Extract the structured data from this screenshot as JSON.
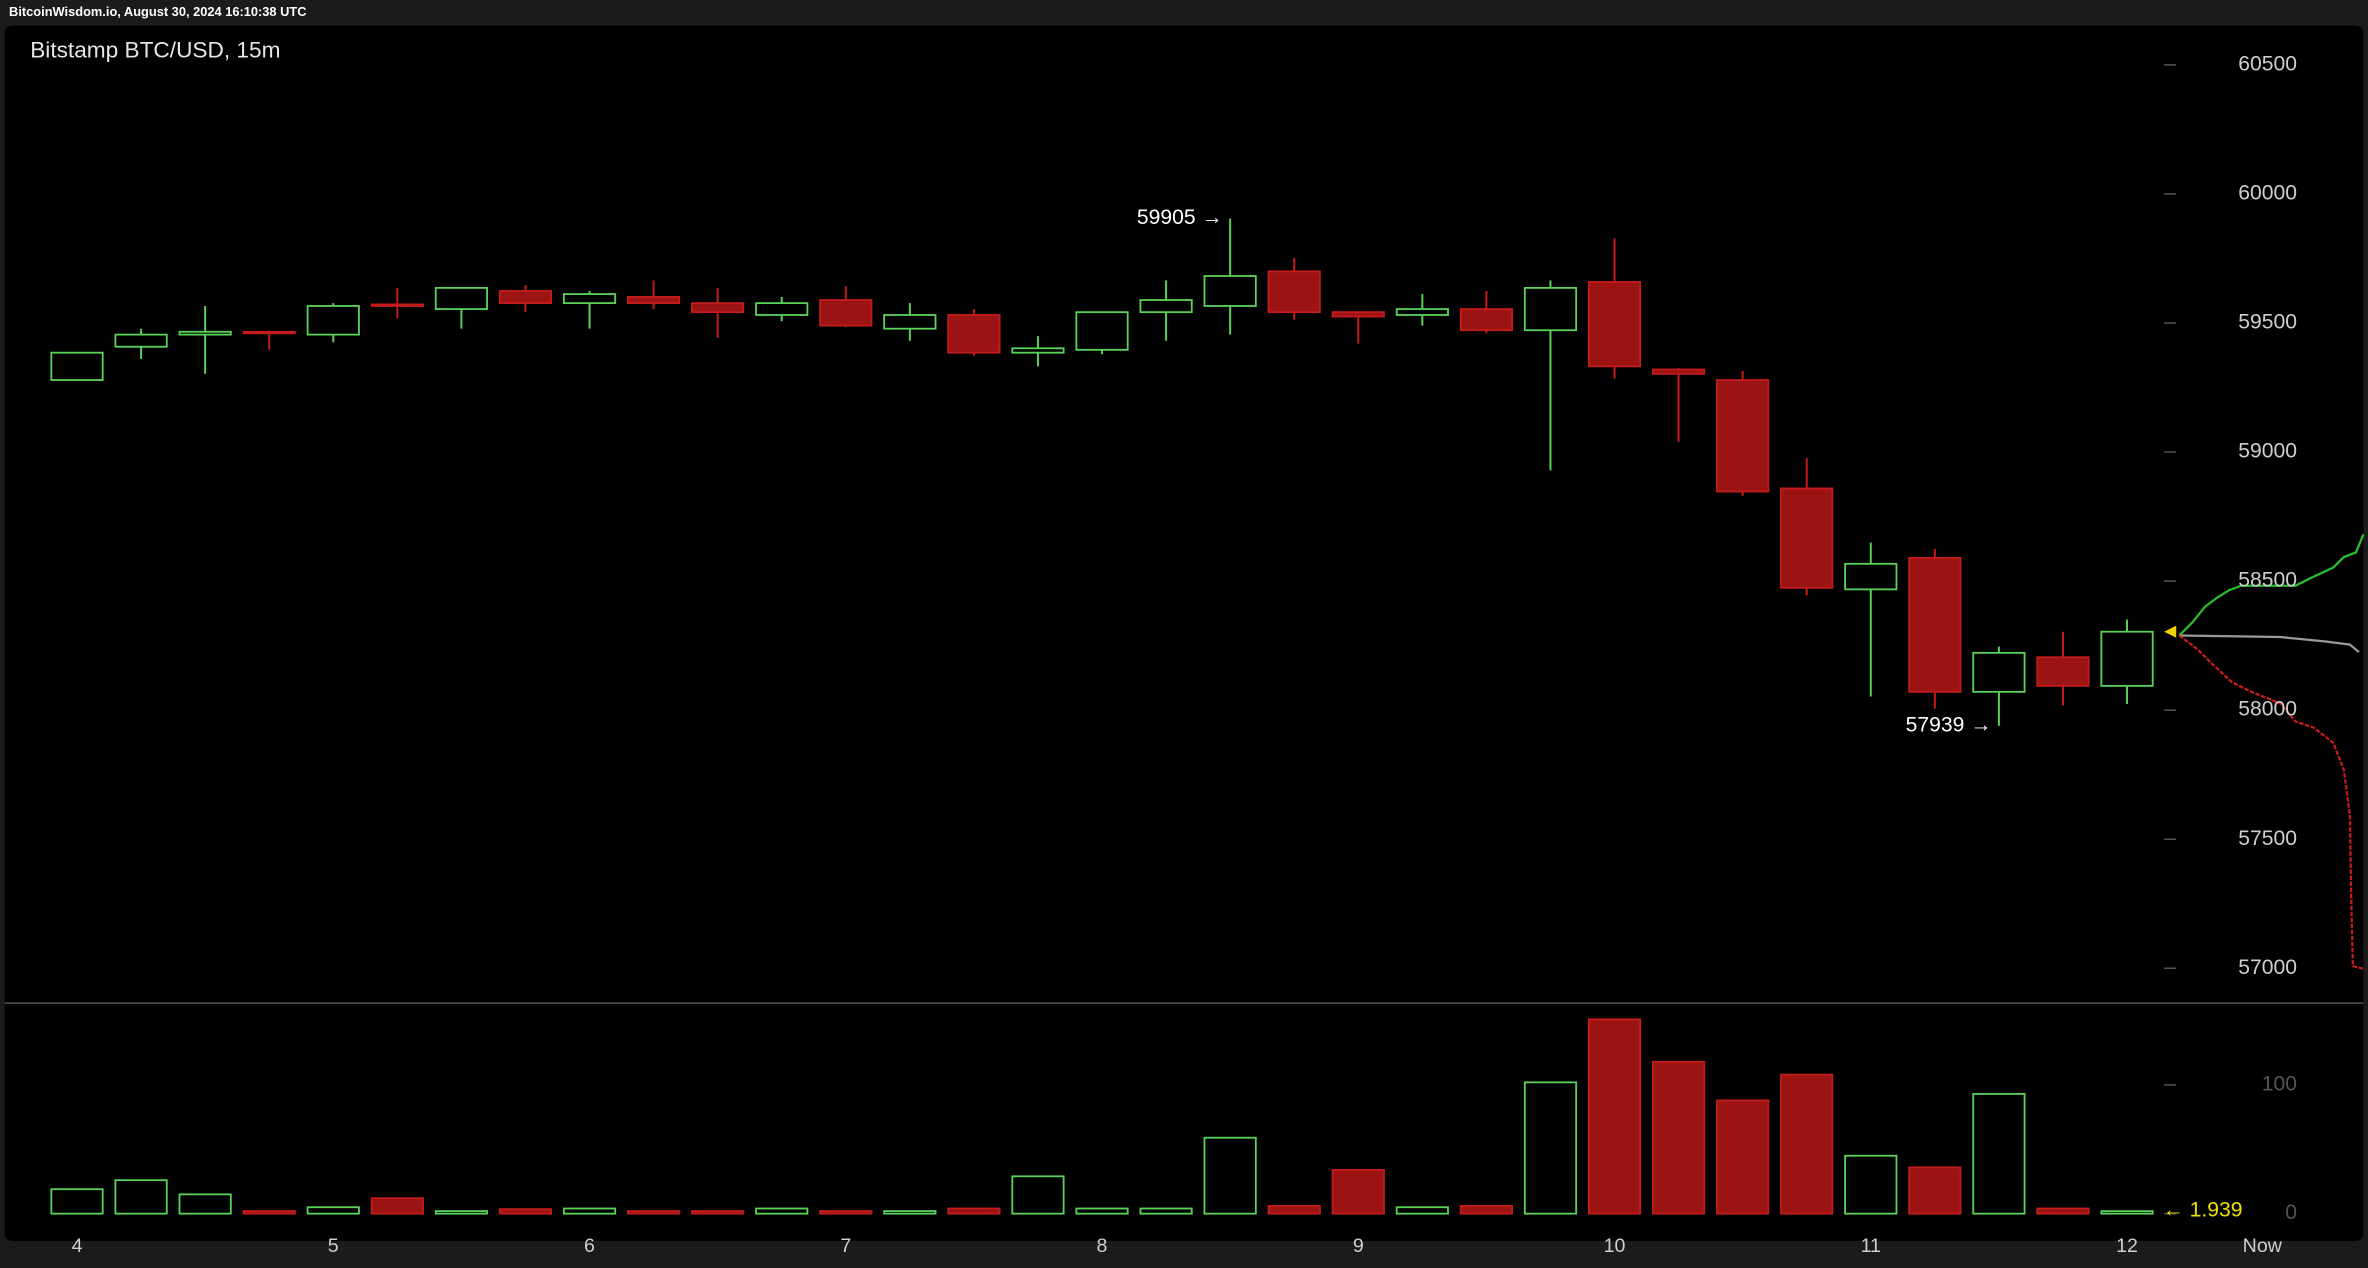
{
  "header": "BitcoinWisdom.io, August 30, 2024 16:10:38 UTC",
  "now_label": "Now",
  "chart_data": [
    {
      "type": "candlestick",
      "title": "Bitstamp BTC/USD, 15m",
      "categories": [
        "4",
        null,
        null,
        null,
        "5",
        null,
        null,
        null,
        "6",
        null,
        null,
        null,
        "7",
        null,
        null,
        null,
        "8",
        null,
        null,
        null,
        "9",
        null,
        null,
        null,
        "10",
        null,
        null,
        null,
        "11",
        null,
        null,
        null,
        "12"
      ],
      "open": [
        59279,
        59408,
        59455,
        59466,
        59455,
        59572,
        59554,
        59624,
        59577,
        59601,
        59577,
        59531,
        59589,
        59478,
        59531,
        59385,
        59396,
        59542,
        59566,
        59700,
        59542,
        59531,
        59554,
        59472,
        59659,
        59320,
        59279,
        58859,
        58468,
        58590,
        58071,
        58205,
        58094
      ],
      "high": [
        59385,
        59478,
        59566,
        59466,
        59577,
        59636,
        59636,
        59647,
        59624,
        59665,
        59636,
        59601,
        59642,
        59577,
        59554,
        59449,
        59542,
        59665,
        59905,
        59752,
        59542,
        59612,
        59624,
        59665,
        59828,
        59326,
        59314,
        58976,
        58649,
        58625,
        58246,
        58304,
        58351
      ],
      "low": [
        59279,
        59361,
        59303,
        59396,
        59425,
        59519,
        59478,
        59542,
        59478,
        59554,
        59443,
        59507,
        59484,
        59431,
        59373,
        59332,
        59379,
        59431,
        59455,
        59513,
        59420,
        59490,
        59460,
        58929,
        59285,
        59040,
        58830,
        58444,
        58053,
        58006,
        57939,
        58018,
        58024
      ],
      "close": [
        59385,
        59455,
        59466,
        59460,
        59566,
        59566,
        59636,
        59577,
        59612,
        59577,
        59542,
        59577,
        59490,
        59531,
        59385,
        59402,
        59542,
        59589,
        59682,
        59542,
        59525,
        59554,
        59472,
        59636,
        59332,
        59303,
        58847,
        58474,
        58567,
        58071,
        58222,
        58094,
        58304
      ],
      "high_labels": [
        null,
        null,
        null,
        null,
        null,
        null,
        null,
        null,
        null,
        null,
        null,
        null,
        null,
        null,
        null,
        null,
        null,
        null,
        "59905 →",
        null,
        null,
        null,
        null,
        null,
        null,
        null,
        null,
        null,
        null,
        null,
        null,
        null,
        null
      ],
      "low_labels": [
        null,
        null,
        null,
        null,
        null,
        null,
        null,
        null,
        null,
        null,
        null,
        null,
        null,
        null,
        null,
        null,
        null,
        null,
        null,
        null,
        null,
        null,
        null,
        null,
        null,
        null,
        null,
        null,
        null,
        null,
        "57939 →",
        null,
        null
      ],
      "up_color": "#5ad25a",
      "down_color": "#9c1313",
      "down_edge": "#c41c1c",
      "ylim": [
        56868,
        60652
      ],
      "yticks": [
        57000,
        57500,
        58000,
        58500,
        59000,
        59500,
        60000,
        60500
      ]
    },
    {
      "type": "bar",
      "values": [
        19,
        26,
        15,
        2,
        5,
        12,
        2,
        3.5,
        4,
        2,
        2,
        4,
        2,
        2,
        4,
        29,
        4,
        4,
        59,
        6,
        34,
        5,
        6,
        102,
        151,
        118,
        88,
        108,
        45,
        36,
        93,
        4,
        1.939
      ],
      "value_labels": [
        null,
        null,
        null,
        null,
        null,
        null,
        null,
        null,
        null,
        null,
        null,
        null,
        null,
        null,
        null,
        null,
        null,
        null,
        null,
        null,
        null,
        null,
        null,
        null,
        null,
        null,
        null,
        null,
        null,
        null,
        null,
        null,
        "← 1.939"
      ],
      "ylim": [
        0,
        163
      ],
      "yticks": [
        0,
        100
      ]
    }
  ]
}
